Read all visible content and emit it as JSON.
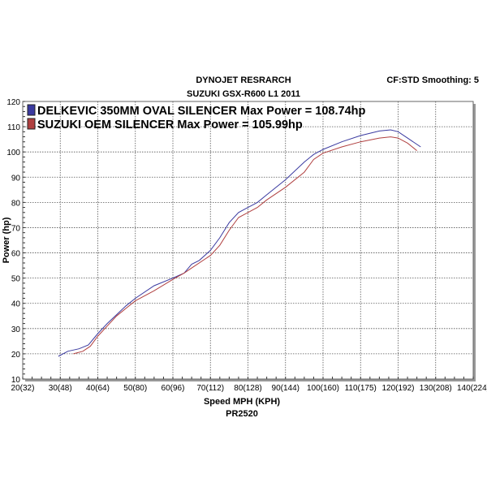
{
  "chart_data": {
    "type": "line",
    "title": "DYNOJET RESRARCH",
    "subtitle": "SUZUKI GSX-R600 L1 2011",
    "corner_note": "CF:STD Smoothing: 5",
    "xlabel": "Speed MPH (KPH)",
    "footer": "PR2520",
    "ylabel": "Power (hp)",
    "xlim": [
      20,
      140
    ],
    "ylim": [
      10,
      120
    ],
    "grid": true,
    "legend_position": "top-left",
    "x_tick_labels": [
      "20(32)",
      "30(48)",
      "40(64)",
      "50(80)",
      "60(96)",
      "70(112)",
      "80(128)",
      "90(144)",
      "100(160)",
      "110(175)",
      "120(192)",
      "130(208)",
      "140(224)"
    ],
    "x_ticks": [
      20,
      30,
      40,
      50,
      60,
      70,
      80,
      90,
      100,
      110,
      120,
      130,
      140
    ],
    "y_ticks": [
      10,
      20,
      30,
      40,
      50,
      60,
      70,
      80,
      90,
      100,
      110,
      120
    ],
    "series": [
      {
        "name": "DELKEVIC 350MM OVAL SILENCER  Max Power = 108.74hp",
        "color": "#3a3aa0",
        "x": [
          29.5,
          32,
          35,
          37.5,
          40,
          42.5,
          45,
          47.5,
          50,
          55,
          60,
          63,
          65,
          67,
          70,
          72.5,
          75,
          77.5,
          80,
          82.5,
          85,
          90,
          95,
          97.5,
          100,
          105,
          110,
          115,
          118,
          120,
          122.5,
          126
        ],
        "y": [
          19,
          21,
          22,
          23.5,
          28,
          32,
          35.5,
          39,
          42,
          47,
          50,
          52,
          55.5,
          57,
          61,
          66,
          72,
          76,
          78,
          80,
          83,
          89,
          96,
          99,
          101,
          104,
          106.5,
          108.3,
          108.74,
          108,
          105.5,
          102
        ]
      },
      {
        "name": "SUZUKI OEM SILENCER Max Power = 105.99hp",
        "color": "#b04040",
        "x": [
          33.5,
          36,
          38,
          40,
          42.5,
          45,
          47.5,
          50,
          55,
          60,
          63,
          65,
          70,
          72.5,
          75,
          77.5,
          80,
          82.5,
          85,
          90,
          95,
          97.5,
          100,
          105,
          110,
          115,
          118,
          120,
          122.5,
          125
        ],
        "y": [
          20,
          21,
          23,
          27,
          31,
          35,
          38,
          41,
          45,
          49.5,
          52,
          54,
          59,
          63,
          69,
          74,
          76,
          78,
          81,
          86,
          92,
          97,
          99.5,
          102,
          104,
          105.5,
          105.99,
          105.5,
          103.5,
          100.5
        ]
      }
    ]
  }
}
